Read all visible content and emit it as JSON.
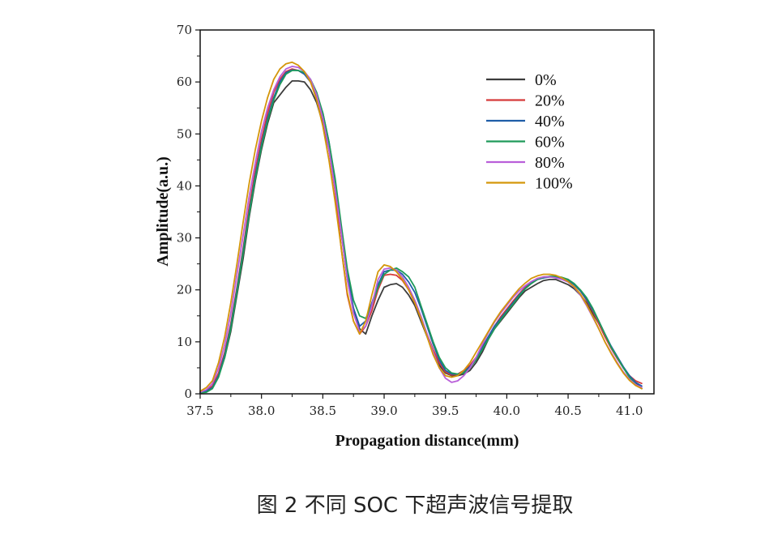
{
  "caption": "图 2 不同 SOC 下超声波信号提取",
  "chart_data": {
    "type": "line",
    "title": "",
    "xlabel": "Propagation distance(mm)",
    "ylabel": "Amplitude(a.u.)",
    "xlim": [
      37.5,
      41.2
    ],
    "ylim": [
      0,
      70
    ],
    "xticks": [
      37.5,
      38.0,
      38.5,
      39.0,
      39.5,
      40.0,
      40.5,
      41.0
    ],
    "xtick_labels": [
      "37.5",
      "38.0",
      "38.5",
      "39.0",
      "39.5",
      "40.0",
      "40.5",
      "41.0"
    ],
    "yticks": [
      0,
      10,
      20,
      30,
      40,
      50,
      60,
      70
    ],
    "ytick_labels": [
      "0",
      "10",
      "20",
      "30",
      "40",
      "50",
      "60",
      "70"
    ],
    "legend_position": "top-right",
    "x": [
      37.5,
      37.55,
      37.6,
      37.65,
      37.7,
      37.75,
      37.8,
      37.85,
      37.9,
      37.95,
      38.0,
      38.05,
      38.1,
      38.15,
      38.2,
      38.25,
      38.3,
      38.35,
      38.4,
      38.45,
      38.5,
      38.55,
      38.6,
      38.65,
      38.7,
      38.75,
      38.8,
      38.85,
      38.9,
      38.95,
      39.0,
      39.05,
      39.1,
      39.15,
      39.2,
      39.25,
      39.3,
      39.35,
      39.4,
      39.45,
      39.5,
      39.55,
      39.6,
      39.65,
      39.7,
      39.75,
      39.8,
      39.85,
      39.9,
      39.95,
      40.0,
      40.05,
      40.1,
      40.15,
      40.2,
      40.25,
      40.3,
      40.35,
      40.4,
      40.45,
      40.5,
      40.55,
      40.6,
      40.65,
      40.7,
      40.75,
      40.8,
      40.85,
      40.9,
      40.95,
      41.0,
      41.05,
      41.1
    ],
    "series": [
      {
        "name": "0%",
        "color": "#3c3c3c",
        "values": [
          0.2,
          0.5,
          1.2,
          3.5,
          7,
          12,
          19,
          26,
          34,
          41,
          47,
          52,
          56,
          57.5,
          59,
          60.2,
          60.2,
          60,
          58.5,
          56,
          52,
          47,
          40,
          31,
          22,
          16,
          12.5,
          11.5,
          15,
          18,
          20.5,
          21,
          21.2,
          20.5,
          19,
          17,
          14,
          11,
          8,
          5.5,
          4,
          3.5,
          3.5,
          3.8,
          4.5,
          6,
          8,
          10.5,
          12.5,
          14,
          15.5,
          17,
          18.5,
          19.8,
          20.5,
          21.2,
          21.8,
          22,
          22,
          21.5,
          21,
          20.2,
          19,
          17.5,
          15.5,
          13.5,
          11,
          9,
          7,
          5,
          3.5,
          2.2,
          1.0
        ]
      },
      {
        "name": "20%",
        "color": "#d63b3b",
        "values": [
          0.2,
          0.7,
          1.5,
          4,
          8,
          13.5,
          20.5,
          28,
          36,
          43,
          49,
          54,
          58,
          60.5,
          62,
          62.5,
          62.2,
          61.5,
          60,
          57,
          53,
          47,
          39,
          28,
          19,
          14,
          11.5,
          13,
          16,
          20,
          22.8,
          23,
          22.8,
          21.8,
          20,
          17.5,
          14.5,
          11.5,
          8.5,
          6,
          4.2,
          3.6,
          3.8,
          4.5,
          5.5,
          7,
          9,
          11,
          13,
          14.8,
          16.3,
          17.8,
          19.2,
          20.5,
          21.5,
          22.2,
          22.5,
          22.5,
          22.5,
          22.3,
          22,
          21,
          19.8,
          18,
          16,
          13.5,
          11,
          8.8,
          6.8,
          5,
          3.5,
          2.5,
          2.0
        ]
      },
      {
        "name": "40%",
        "color": "#1f5ea8",
        "values": [
          0.2,
          0.5,
          1.2,
          3.5,
          7.5,
          13,
          20,
          27.5,
          35,
          42,
          48,
          53,
          57,
          60,
          61.8,
          62.3,
          62.2,
          61.5,
          60,
          57.5,
          54,
          48.5,
          41,
          32,
          23,
          16.5,
          13,
          14,
          17.5,
          21,
          23.5,
          23.8,
          23.8,
          23,
          21.5,
          19.5,
          16.5,
          13,
          9.5,
          6.5,
          4.5,
          3.8,
          3.8,
          4.2,
          5.2,
          6.8,
          8.8,
          11,
          13,
          14.5,
          16,
          17.5,
          19,
          20.3,
          21.3,
          22,
          22.3,
          22.5,
          22.5,
          22.3,
          21.8,
          21,
          19.8,
          18.2,
          16.2,
          14,
          11.5,
          9.2,
          7.2,
          5.2,
          3.5,
          2.2,
          1.5
        ]
      },
      {
        "name": "60%",
        "color": "#1f9a5a",
        "values": [
          0.2,
          0.3,
          1.0,
          3.2,
          7,
          12.5,
          19.5,
          27,
          34.5,
          41.5,
          47.5,
          52.5,
          56.5,
          59.5,
          61.5,
          62.2,
          62.2,
          61.8,
          60.5,
          58,
          54,
          48.5,
          41.5,
          32.5,
          24,
          18,
          15,
          14.5,
          17,
          20.5,
          23,
          23.8,
          24.2,
          23.5,
          22.5,
          20.5,
          17,
          13.5,
          10,
          7,
          5,
          4,
          3.8,
          4,
          5,
          6.5,
          8.5,
          10.5,
          12.5,
          14.2,
          15.8,
          17.2,
          18.8,
          20.2,
          21.2,
          22,
          22.4,
          22.6,
          22.6,
          22.4,
          22,
          21.2,
          20,
          18.5,
          16.5,
          14,
          11.5,
          9,
          7,
          5,
          3.2,
          1.8,
          1.0
        ]
      },
      {
        "name": "80%",
        "color": "#b95fd9",
        "values": [
          0.3,
          0.8,
          2,
          5,
          9.5,
          15.5,
          23,
          30.5,
          38,
          44.5,
          50.5,
          55,
          58.5,
          61,
          62.5,
          63,
          62.8,
          62,
          60.5,
          57.5,
          53,
          47,
          39.5,
          31,
          22,
          15.5,
          12,
          13,
          17,
          22,
          24,
          24.2,
          23.8,
          22.5,
          20.5,
          18,
          15,
          11.5,
          8,
          5,
          3,
          2.2,
          2.5,
          3.5,
          5,
          7,
          9.5,
          11.8,
          13.8,
          15.5,
          17,
          18.5,
          19.8,
          20.8,
          21.6,
          22.2,
          22.5,
          22.5,
          22.3,
          22,
          21.5,
          20.5,
          19,
          17,
          14.8,
          12.5,
          10,
          8,
          6,
          4.2,
          2.8,
          1.8,
          1.2
        ]
      },
      {
        "name": "100%",
        "color": "#d4960a",
        "values": [
          0.5,
          1.2,
          2.5,
          6,
          11,
          17.5,
          25,
          33,
          40.5,
          47,
          52.5,
          57,
          60.5,
          62.5,
          63.5,
          63.8,
          63.2,
          62,
          60,
          56.5,
          51.5,
          45,
          37,
          28,
          19.5,
          14,
          11.5,
          14,
          19,
          23.5,
          24.8,
          24.5,
          23.5,
          22,
          20,
          17.5,
          14.5,
          11,
          7.5,
          5,
          3.5,
          3.2,
          3.5,
          4.5,
          6,
          8,
          10,
          12,
          14,
          15.8,
          17.3,
          18.8,
          20.2,
          21.3,
          22.2,
          22.7,
          23,
          23,
          22.8,
          22.3,
          21.6,
          20.6,
          19.2,
          17.2,
          15,
          12.5,
          10,
          7.8,
          5.8,
          4,
          2.6,
          1.6,
          1.0
        ]
      }
    ]
  }
}
